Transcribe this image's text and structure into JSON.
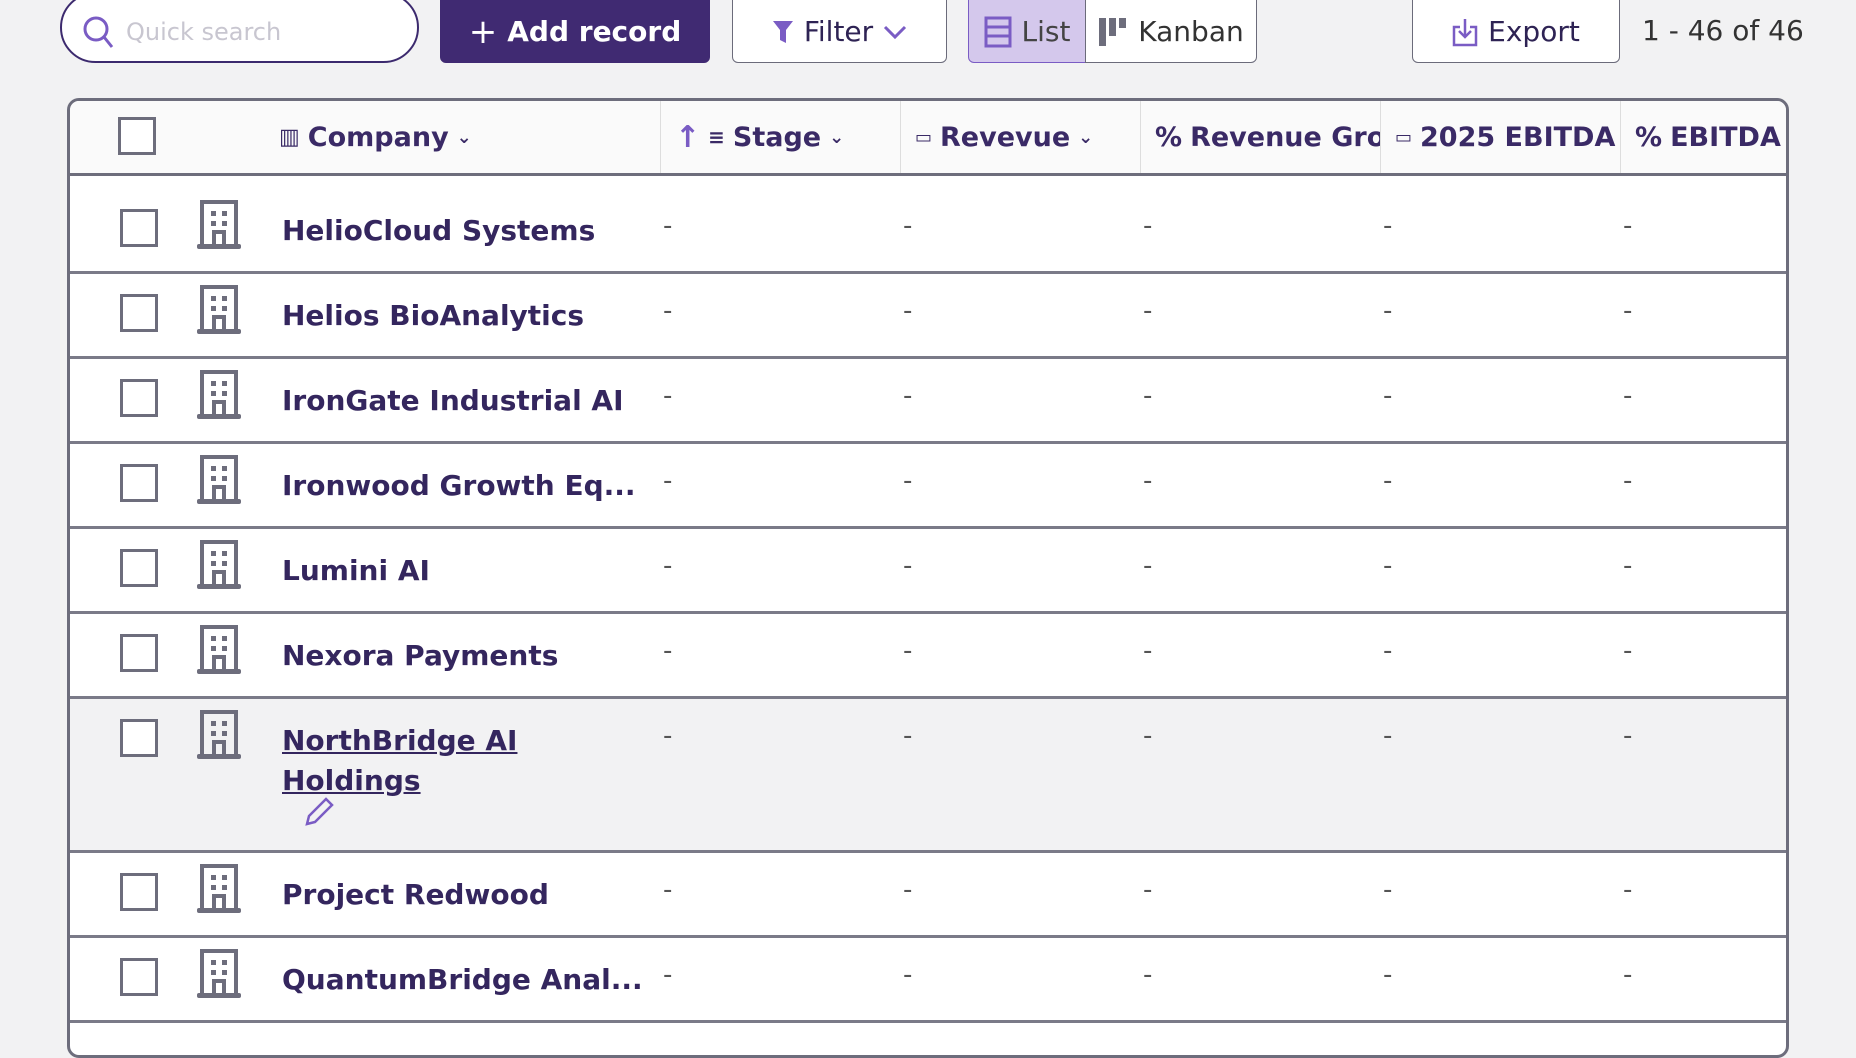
{
  "toolbar": {
    "search_placeholder": "Quick search",
    "add_label": "Add record",
    "filter_label": "Filter",
    "list_label": "List",
    "kanban_label": "Kanban",
    "export_label": "Export",
    "count": "1 - 46 of 46"
  },
  "columns": [
    {
      "label": "Company",
      "icon": "building-icon"
    },
    {
      "label": "Stage",
      "icon": "sort-ascending-icon"
    },
    {
      "label": "Revevue",
      "icon": "money-icon"
    },
    {
      "label": "Revenue Gro",
      "icon": "percent-icon"
    },
    {
      "label": "2025 EBITDA",
      "icon": "money-icon"
    },
    {
      "label": "EBITDA M",
      "icon": "percent-icon"
    }
  ],
  "rows": [
    {
      "name": "HelioCloud Systems",
      "values": [
        "-",
        "-",
        "-",
        "-",
        "-"
      ]
    },
    {
      "name": "Helios BioAnalytics",
      "values": [
        "-",
        "-",
        "-",
        "-",
        "-"
      ]
    },
    {
      "name": "IronGate Industrial AI",
      "values": [
        "-",
        "-",
        "-",
        "-",
        "-"
      ]
    },
    {
      "name": "Ironwood Growth Eq...",
      "values": [
        "-",
        "-",
        "-",
        "-",
        "-"
      ]
    },
    {
      "name": "Lumini AI",
      "values": [
        "-",
        "-",
        "-",
        "-",
        "-"
      ]
    },
    {
      "name": "Nexora Payments",
      "values": [
        "-",
        "-",
        "-",
        "-",
        "-"
      ]
    },
    {
      "name": "NorthBridge AI Holdings",
      "values": [
        "-",
        "-",
        "-",
        "-",
        "-"
      ],
      "hovered": true
    },
    {
      "name": "Project Redwood",
      "values": [
        "-",
        "-",
        "-",
        "-",
        "-"
      ]
    },
    {
      "name": "QuantumBridge Anal...",
      "values": [
        "-",
        "-",
        "-",
        "-",
        "-"
      ]
    }
  ],
  "colors": {
    "brand": "#402a72",
    "accent": "#7a5cc4",
    "text": "#34265e"
  }
}
